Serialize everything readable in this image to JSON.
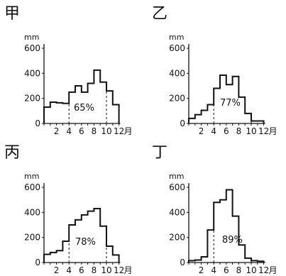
{
  "chart_data": [
    {
      "type": "bar",
      "title": "甲",
      "ylabel": "mm",
      "x_unit": "月",
      "ylim": [
        0,
        600
      ],
      "y_ticks": [
        "0",
        "200",
        "400",
        "600"
      ],
      "x_tick_labels": [
        "2",
        "4",
        "6",
        "8",
        "10",
        "12"
      ],
      "categories": [
        "1",
        "2",
        "3",
        "4",
        "5",
        "6",
        "7",
        "8",
        "9",
        "10",
        "11",
        "12"
      ],
      "values": [
        130,
        170,
        165,
        160,
        250,
        300,
        250,
        320,
        425,
        330,
        260,
        150
      ],
      "annotation": "65%",
      "dashed_month_bounds": [
        4,
        10
      ]
    },
    {
      "type": "bar",
      "title": "乙",
      "ylabel": "mm",
      "x_unit": "月",
      "ylim": [
        0,
        600
      ],
      "y_ticks": [
        "0",
        "200",
        "400",
        "600"
      ],
      "x_tick_labels": [
        "2",
        "4",
        "6",
        "8",
        "10",
        "12"
      ],
      "categories": [
        "1",
        "2",
        "3",
        "4",
        "5",
        "6",
        "7",
        "8",
        "9",
        "10",
        "11",
        "12"
      ],
      "values": [
        40,
        70,
        105,
        150,
        280,
        385,
        310,
        375,
        210,
        80,
        20,
        20
      ],
      "annotation": "77%",
      "dashed_month_bounds": [
        4,
        10
      ]
    },
    {
      "type": "bar",
      "title": "丙",
      "ylabel": "mm",
      "x_unit": "月",
      "ylim": [
        0,
        600
      ],
      "y_ticks": [
        "0",
        "200",
        "400",
        "600"
      ],
      "x_tick_labels": [
        "2",
        "4",
        "6",
        "8",
        "10",
        "12"
      ],
      "categories": [
        "1",
        "2",
        "3",
        "4",
        "5",
        "6",
        "7",
        "8",
        "9",
        "10",
        "11",
        "12"
      ],
      "values": [
        65,
        80,
        95,
        170,
        300,
        340,
        380,
        410,
        430,
        290,
        130,
        60
      ],
      "annotation": "78%",
      "dashed_month_bounds": [
        4,
        10
      ]
    },
    {
      "type": "bar",
      "title": "丁",
      "ylabel": "mm",
      "x_unit": "月",
      "ylim": [
        0,
        600
      ],
      "y_ticks": [
        "0",
        "200",
        "400",
        "600"
      ],
      "x_tick_labels": [
        "2",
        "4",
        "6",
        "8",
        "10",
        "12"
      ],
      "categories": [
        "1",
        "2",
        "3",
        "4",
        "5",
        "6",
        "7",
        "8",
        "9",
        "10",
        "11",
        "12"
      ],
      "values": [
        15,
        20,
        45,
        260,
        480,
        500,
        580,
        370,
        140,
        35,
        15,
        10
      ],
      "annotation": "89%",
      "dashed_month_bounds": [
        4,
        10
      ]
    }
  ]
}
